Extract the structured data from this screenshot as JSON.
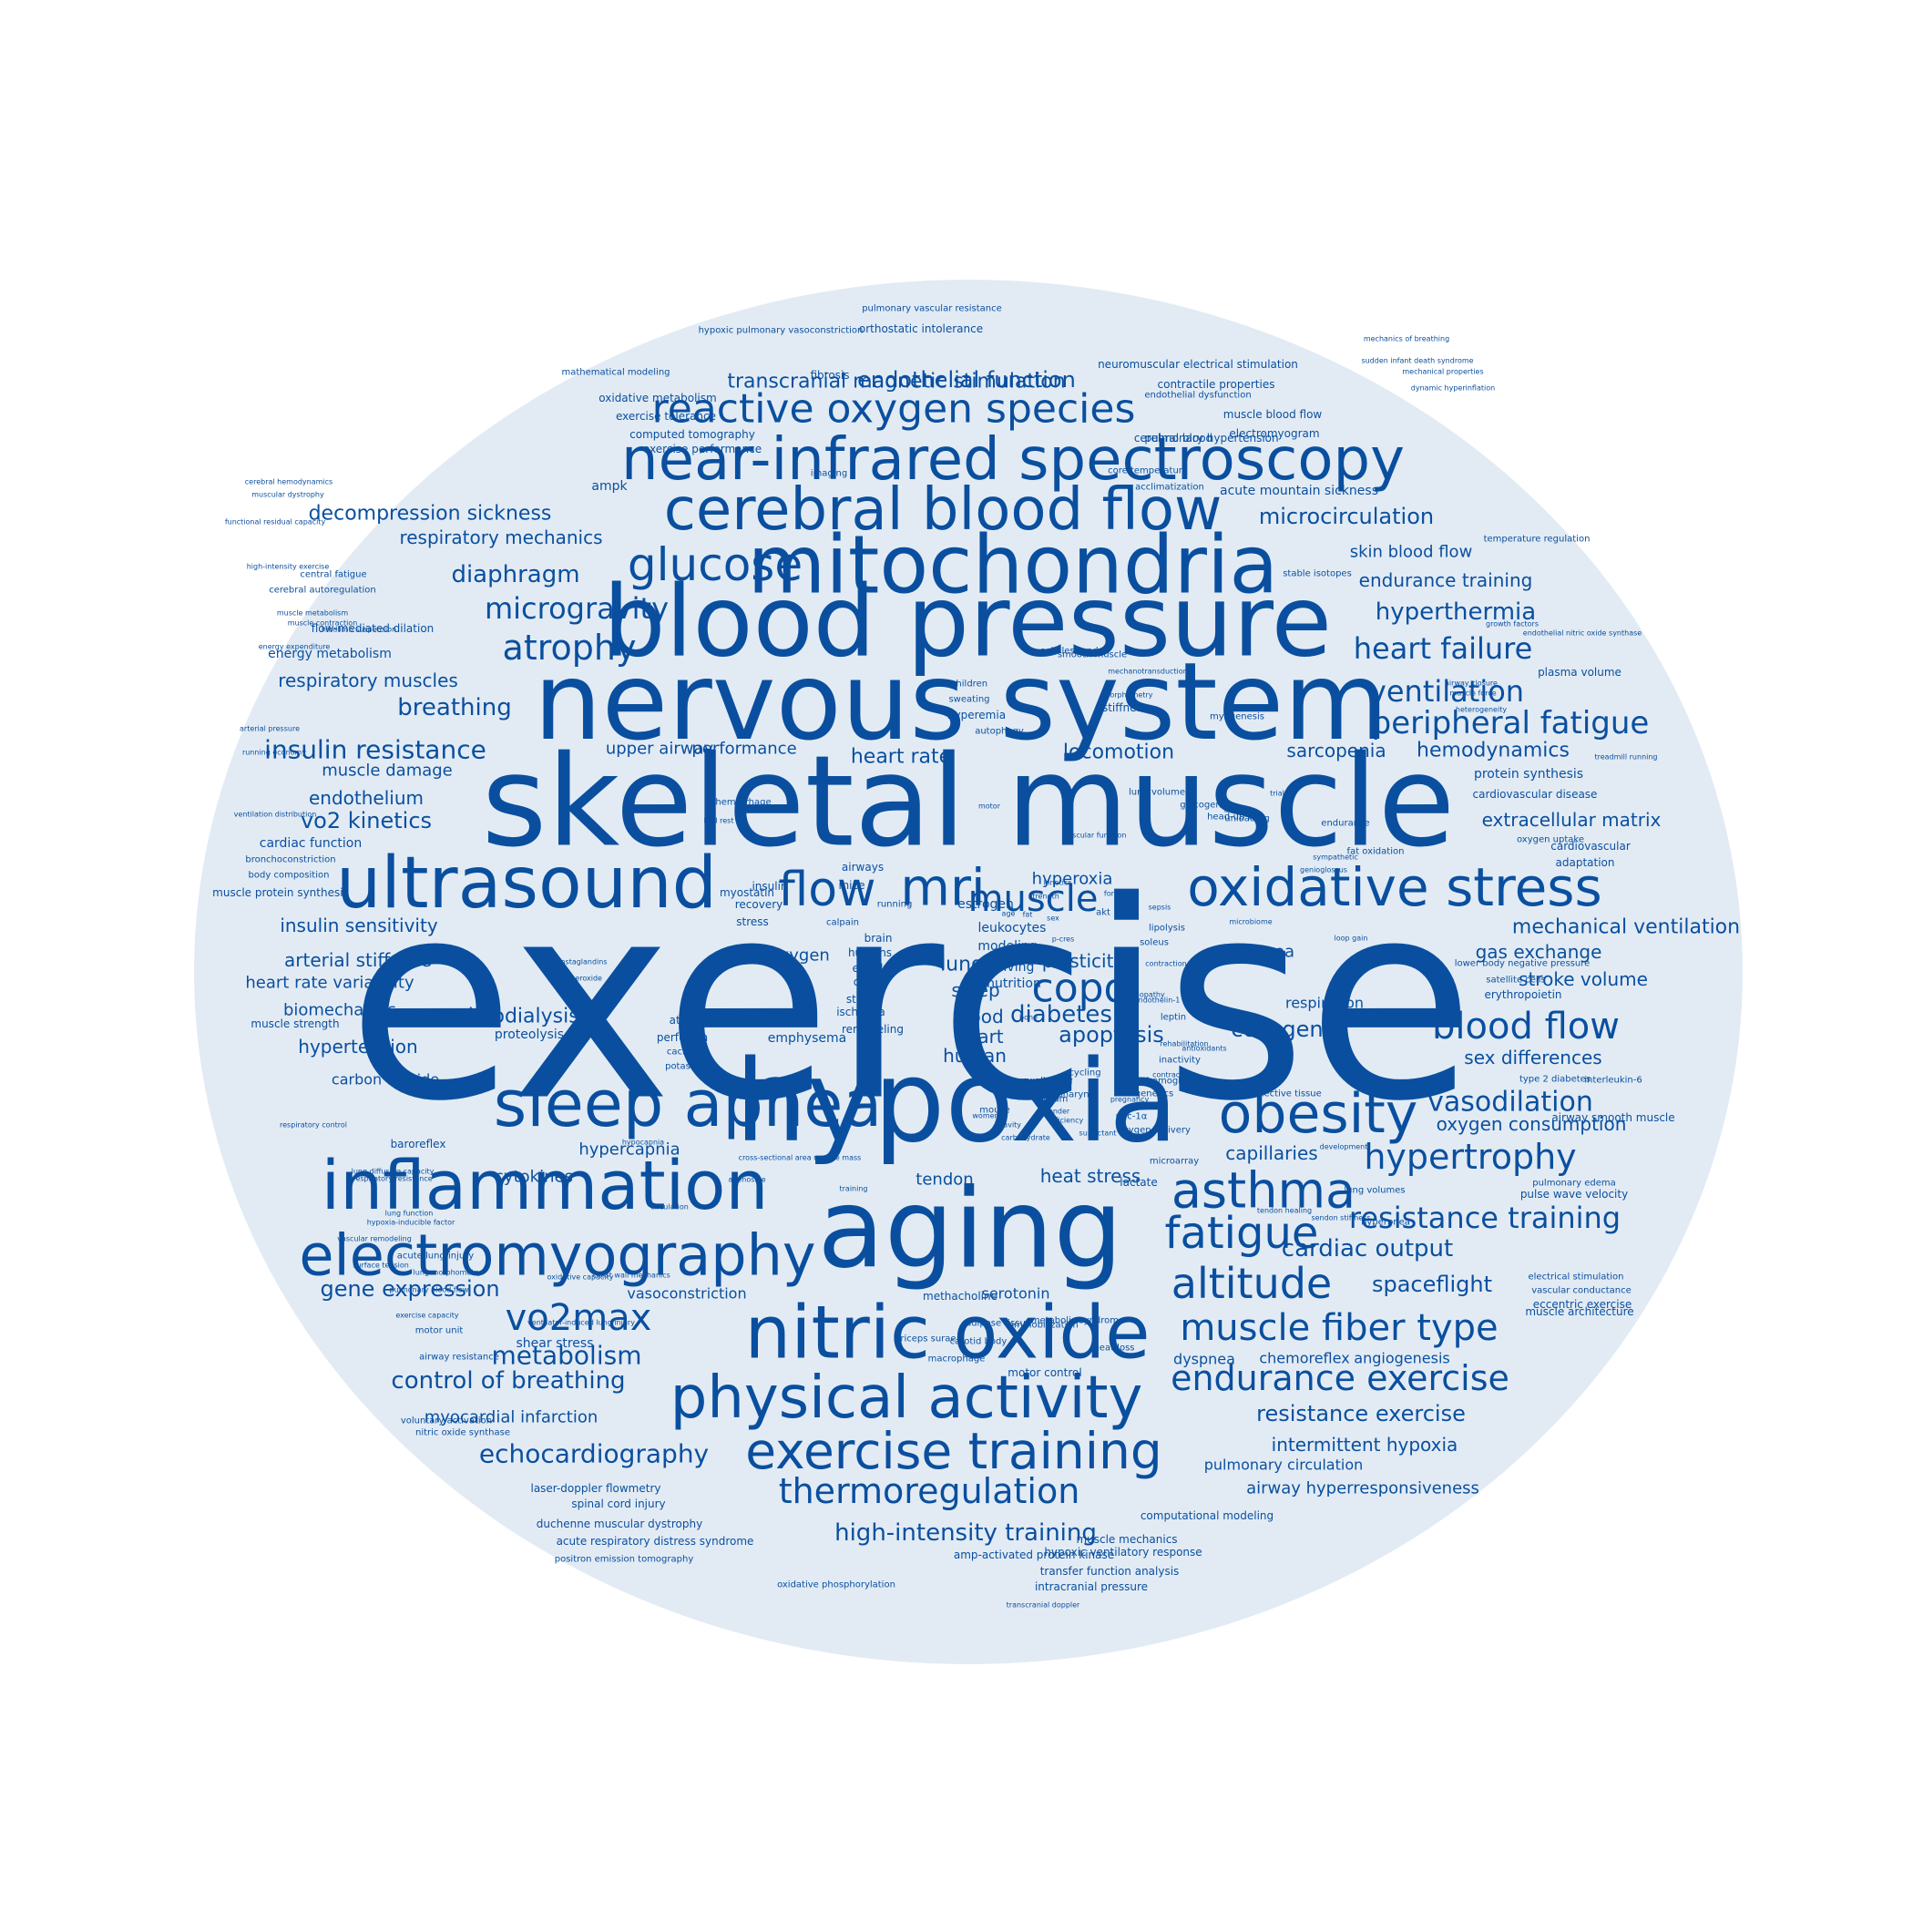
{
  "colors": {
    "background": "#ffffff",
    "disc": "#e2ebf4",
    "text": "#0a4f9f"
  },
  "words": [
    "exercise",
    "skeletal muscle",
    "nervous system",
    "hypoxia",
    "aging",
    "blood pressure",
    "mitochondria",
    "nitric oxide",
    "inflammation",
    "near-infrared spectroscopy",
    "cerebral blood flow",
    "ultrasound",
    "oxidative stress",
    "sleep apnea",
    "physical activity",
    "electromyography",
    "exercise training",
    "reactive oxygen species",
    "obesity",
    "asthma",
    "copd",
    "mri",
    "flow",
    "glucose",
    "muscle",
    "altitude",
    "fatigue",
    "blood flow",
    "muscle fiber type",
    "endurance exercise",
    "thermoregulation",
    "atrophy",
    "vo2max",
    "microgravity",
    "hypertrophy",
    "peripheral fatigue",
    "heart failure",
    "ventilation",
    "hyperthermia",
    "resistance training",
    "high-intensity training",
    "metabolism",
    "control of breathing",
    "echocardiography",
    "insulin resistance",
    "diaphragm",
    "vasodilation",
    "breathing",
    "transcranial magnetic stimulation",
    "endothelial function",
    "microcirculation",
    "resistance exercise",
    "cardiac output",
    "spaceflight",
    "gene expression",
    "diabetes",
    "microdialysis",
    "collagen",
    "apoptosis",
    "endothelium",
    "vo2 kinetics",
    "hemodynamics",
    "extracellular matrix",
    "intermittent hypoxia",
    "airway hyperresponsiveness",
    "locomotion",
    "sarcopenia",
    "heart rate",
    "mechanical ventilation",
    "stroke volume",
    "gas exchange",
    "sex differences",
    "oxygen consumption",
    "capillaries",
    "insulin sensitivity",
    "arterial stiffness",
    "heart rate variability",
    "biomechanics",
    "hypertension",
    "respiratory muscles",
    "muscle damage",
    "decompression sickness",
    "respiratory mechanics",
    "skin blood flow",
    "endurance training",
    "plasticity",
    "lung",
    "sleep",
    "blood",
    "heart",
    "human",
    "myocardial infarction",
    "pulmonary circulation",
    "dyspnea",
    "chemoreflex",
    "angiogenesis",
    "cytokines",
    "hypercapnia",
    "heat stress",
    "tendon",
    "serotonin",
    "vasoconstriction",
    "upper airway",
    "performance",
    "oxygen",
    "apnea",
    "respiration",
    "shear stress",
    "carbon dioxide",
    "proteolysis",
    "emphysema",
    "ampk",
    "fibrosis",
    "acute mountain sickness",
    "contractile properties",
    "cerebral blood",
    "pulmonary hypertension",
    "electromyogram",
    "muscle blood flow",
    "computed tomography",
    "exercise performance",
    "exercise tolerance",
    "oxidative metabolism",
    "mathematical modeling",
    "orthostatic intolerance",
    "hypoxic pulmonary vasoconstriction",
    "pulmonary vascular resistance",
    "neuromuscular electrical stimulation",
    "endothelial dysfunction",
    "energy metabolism",
    "flow-mediated dilation",
    "central fatigue",
    "cerebral autoregulation",
    "cardiac function",
    "bronchoconstriction",
    "body composition",
    "muscle protein synthesis",
    "muscle strength",
    "protein synthesis",
    "cardiovascular disease",
    "cardiovascular",
    "adaptation",
    "oxygen uptake",
    "plasma volume",
    "temperature regulation",
    "lower body negative pressure",
    "satellite cells",
    "erythropoietin",
    "interleukin-6",
    "type 2 diabetes",
    "airway smooth muscle",
    "pulse wave velocity",
    "pulmonary edema",
    "eccentric exercise",
    "muscle architecture",
    "vascular conductance",
    "electrical stimulation",
    "spinal cord injury",
    "duchenne muscular dystrophy",
    "acute respiratory distress syndrome",
    "positron emission tomography",
    "amp-activated protein kinase",
    "hypoxic ventilatory response",
    "transfer function analysis",
    "muscle mechanics",
    "computational modeling",
    "intracranial pressure",
    "oxidative phosphorylation",
    "transcranial doppler",
    "laser-doppler flowmetry",
    "voluntary activation",
    "nitric oxide synthase",
    "airway resistance",
    "motor unit",
    "acute lung injury",
    "baroreflex",
    "methacholine",
    "carotid body",
    "triceps surae",
    "macrophage",
    "adipose tissue",
    "immobilization",
    "metabolic syndrome",
    "motor control",
    "heat loss",
    "hypocapnia",
    "cross-sectional area muscle mass",
    "training",
    "lactate",
    "hyperoxia",
    "estrogen",
    "leukocytes",
    "modeling",
    "diving",
    "nutrition",
    "airways",
    "mice",
    "running",
    "calpain",
    "myostatin",
    "insulin",
    "recovery",
    "stress",
    "brain",
    "humans",
    "elderly",
    "disuse",
    "strain",
    "ischemia",
    "remodeling",
    "athletes",
    "perfusion",
    "cachexia",
    "potassium",
    "superoxide",
    "prostaglandins",
    "swallowing",
    "calcium",
    "cycling",
    "pharynx",
    "mouse",
    "gait",
    "age",
    "sex",
    "fat",
    "akt",
    "lipolysis",
    "soleus",
    "contraction",
    "leptin",
    "genetics",
    "hemoglobin",
    "inactivity",
    "rehabilitation",
    "oxygen delivery",
    "pgc-1α",
    "pregnancy",
    "microarray",
    "hyperemia",
    "children",
    "sweating",
    "autophagy",
    "stiffness",
    "myogenesis",
    "unloading",
    "endurance",
    "fat oxidation",
    "head-up tilt",
    "hemorrhage",
    "bed rest",
    "lung volume",
    "glycogen",
    "imaging",
    "core temperature",
    "acclimatization",
    "connective tissue",
    "hindlimb suspension",
    "energy expenditure",
    "achilles tendon",
    "smooth muscle",
    "mechanotransduction",
    "morphometry",
    "stable isotopes",
    "growth factors",
    "endothelial nitric oxide synthase",
    "airway closure",
    "muscle force",
    "heterogeneity",
    "treadmill running",
    "vascular remodeling",
    "surface tension",
    "lung volumes",
    "hyperpnea",
    "sendon stiffness",
    "tendon healing",
    "development",
    "mechanics of breathing",
    "sudden infant death syndrome",
    "mechanical properties",
    "dynamic hyperinflation",
    "cerebral hemodynamics",
    "functional residual capacity",
    "muscular dystrophy",
    "high-intensity exercise",
    "muscle metabolism",
    "muscle contraction",
    "arterial pressure",
    "running economy",
    "ventilation distribution",
    "respiratory control",
    "respiratory resistance",
    "lung diffusing capacity",
    "lung function",
    "hypoxia-inducible factor",
    "lung morphometry",
    "pulmonary blood flow",
    "exercise capacity",
    "chest wall mechanics",
    "oxidative capacity",
    "ventilator-induced lung injury",
    "circulation",
    "adenosine",
    "gender",
    "motor",
    "vascular function",
    "sepsis",
    "force",
    "kinetics",
    "p-cres",
    "bone",
    "strength",
    "trial",
    "airway",
    "sympathetic",
    "genioglossus",
    "loop gain",
    "microbiome",
    "endothelin-1",
    "tendinopathy",
    "antioxidants",
    "contractility",
    "surfactant",
    "carbohydrate",
    "efficiency",
    "gravity",
    "women",
    "physical training",
    "antioxidant",
    "signaling",
    "hypoxemia",
    "hypertension",
    "cancer",
    "power",
    "skin",
    "ph",
    "blood"
  ]
}
